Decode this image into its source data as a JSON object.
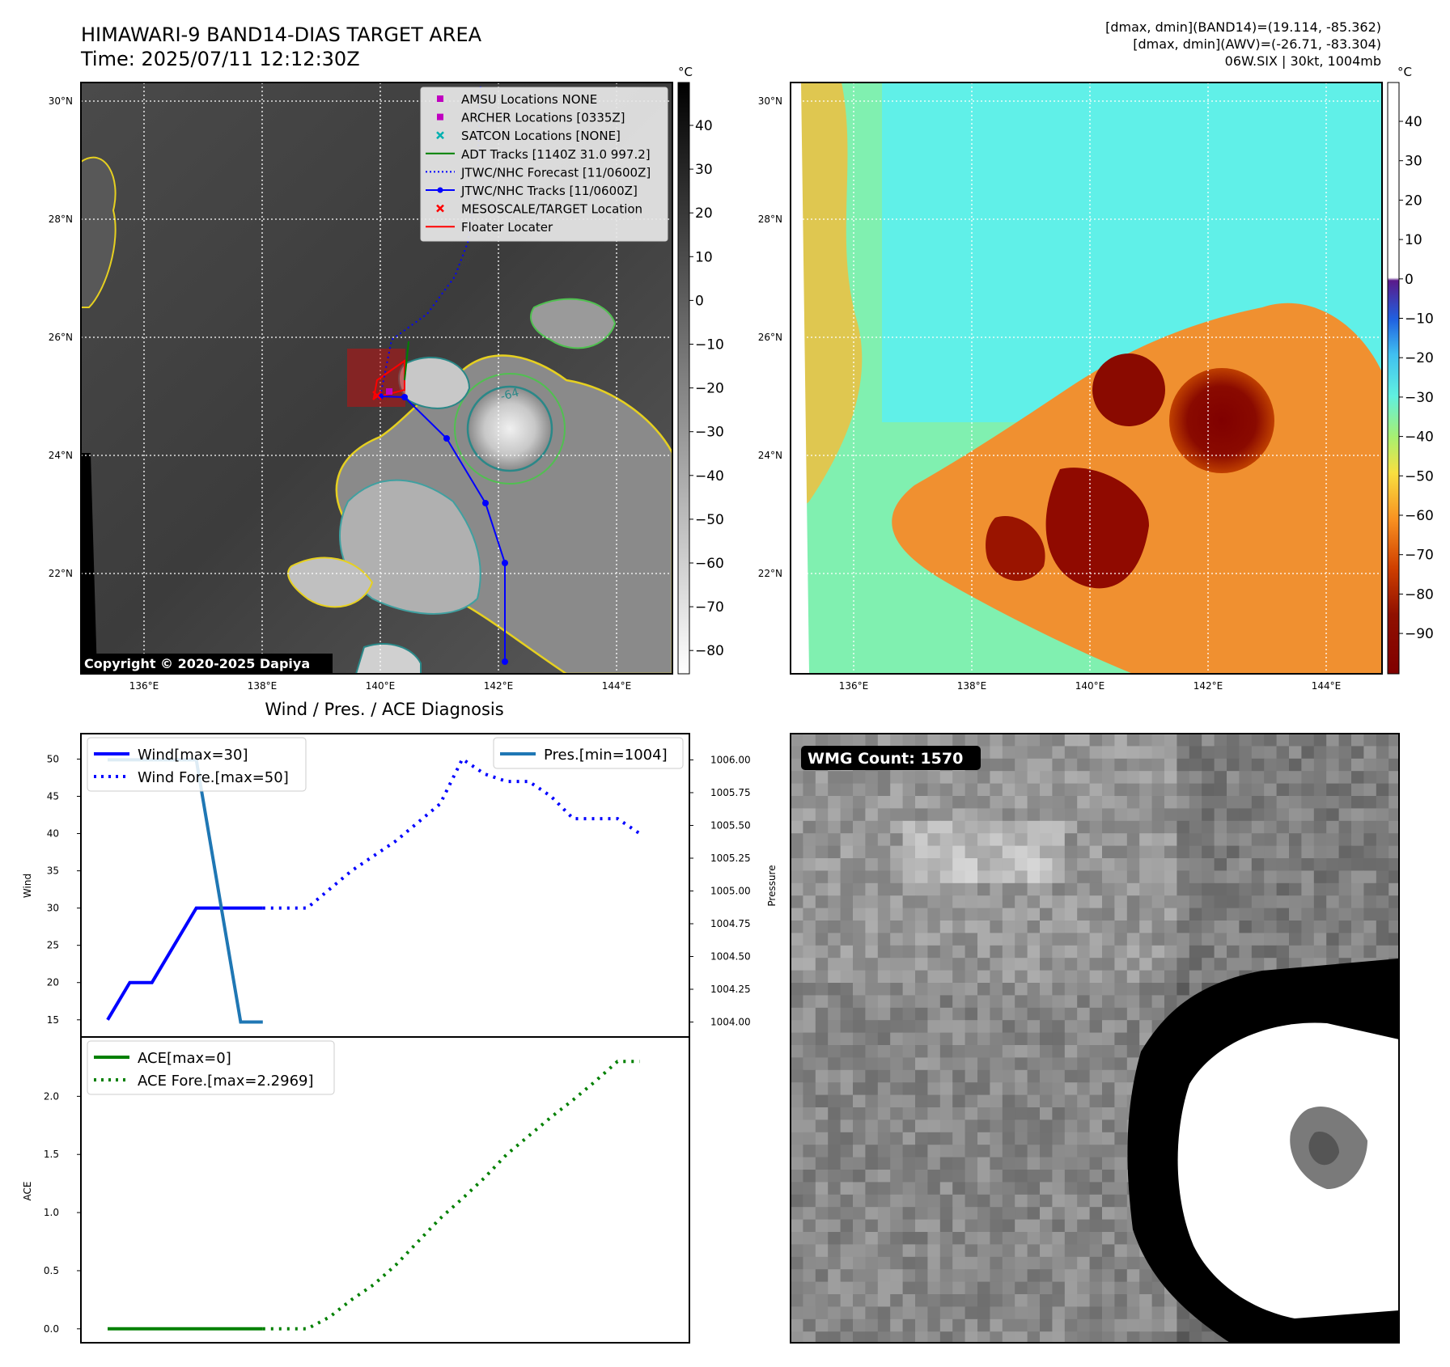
{
  "header": {
    "title_line1": "HIMAWARI-9 BAND14-DIAS TARGET AREA",
    "title_line2": "Time: 2025/07/11 12:12:30Z",
    "info_line1": "[dmax, dmin](BAND14)=(19.114, -85.362)",
    "info_line2": "[dmax, dmin](AWV)=(-26.71, -83.304)",
    "info_line3": "06W.SIX | 30kt, 1004mb"
  },
  "map_axes": {
    "lat_ticks": [
      "30°N",
      "28°N",
      "26°N",
      "24°N",
      "22°N"
    ],
    "lon_ticks": [
      "136°E",
      "138°E",
      "140°E",
      "142°E",
      "144°E"
    ]
  },
  "map1": {
    "copyright": "Copyright © 2020-2025 Dapiya",
    "colorbar_unit": "°C",
    "colorbar_ticks": [
      "40",
      "30",
      "20",
      "10",
      "0",
      "−10",
      "−20",
      "−30",
      "−40",
      "−50",
      "−60",
      "−70",
      "−80"
    ],
    "contour_label": "-64",
    "legend": [
      {
        "label": "AMSU Locations NONE",
        "color": "#c000c0",
        "marker": "square"
      },
      {
        "label": "ARCHER Locations [0335Z]",
        "color": "#c000c0",
        "marker": "square"
      },
      {
        "label": "SATCON Locations [NONE]",
        "color": "#00b0b0",
        "marker": "x"
      },
      {
        "label": "ADT Tracks [1140Z 31.0 997.2]",
        "color": "#008000",
        "marker": "line"
      },
      {
        "label": "JTWC/NHC Forecast [11/0600Z]",
        "color": "#0000ff",
        "marker": "dotted"
      },
      {
        "label": "JTWC/NHC Tracks [11/0600Z]",
        "color": "#0000ff",
        "marker": "line-dot"
      },
      {
        "label": "MESOSCALE/TARGET Location",
        "color": "#ff0000",
        "marker": "x"
      },
      {
        "label": "Floater Locater",
        "color": "#ff0000",
        "marker": "line"
      }
    ]
  },
  "map2": {
    "colorbar_unit": "°C",
    "colorbar_ticks": [
      "40",
      "30",
      "20",
      "10",
      "0",
      "−10",
      "−20",
      "−30",
      "−40",
      "−50",
      "−60",
      "−70",
      "−80",
      "−90"
    ]
  },
  "panel3": {
    "title": "Wind / Pres. / ACE Diagnosis",
    "badge": "WMG Count: 1570"
  },
  "chart_data": [
    {
      "type": "line",
      "title": "Wind / Pres. / ACE Diagnosis",
      "ylabel": "Wind",
      "y2label": "Pressure",
      "ylim": [
        14,
        52
      ],
      "y2lim": [
        1003.96,
        1006.12
      ],
      "yticks": [
        "15",
        "20",
        "25",
        "30",
        "35",
        "40",
        "45",
        "50"
      ],
      "y2ticks": [
        "1004.00",
        "1004.25",
        "1004.50",
        "1004.75",
        "1005.00",
        "1005.25",
        "1005.50",
        "1005.75",
        "1006.00"
      ],
      "xlim": [
        0,
        25
      ],
      "series": [
        {
          "name": "Wind[max=30]",
          "color": "#0000ff",
          "style": "solid",
          "x": [
            0,
            1,
            2,
            4,
            5,
            6,
            7
          ],
          "y": [
            15,
            20,
            20,
            30,
            30,
            30,
            30
          ]
        },
        {
          "name": "Wind Fore.[max=50]",
          "color": "#0000ff",
          "style": "dotted",
          "x": [
            7,
            9,
            11,
            13,
            15,
            16,
            17,
            18,
            19,
            20,
            21,
            22,
            23,
            24
          ],
          "y": [
            30,
            30,
            35,
            39,
            44,
            50,
            48,
            47,
            47,
            45,
            42,
            42,
            42,
            40
          ]
        },
        {
          "name": "Pres.[min=1004]",
          "color": "#1f77b4",
          "style": "solid",
          "axis": "y2",
          "x": [
            0,
            4,
            6,
            7
          ],
          "y": [
            1006,
            1006,
            1004,
            1004
          ]
        }
      ],
      "legend": [
        "upper left",
        "upper right"
      ]
    },
    {
      "type": "line",
      "ylabel": "ACE",
      "ylim": [
        -0.05,
        2.42
      ],
      "yticks": [
        "0.0",
        "0.5",
        "1.0",
        "1.5",
        "2.0"
      ],
      "xlim": [
        0,
        25
      ],
      "series": [
        {
          "name": "ACE[max=0]",
          "color": "#008000",
          "style": "solid",
          "x": [
            0,
            7
          ],
          "y": [
            0,
            0
          ]
        },
        {
          "name": "ACE Fore.[max=2.2969]",
          "color": "#008000",
          "style": "dotted",
          "x": [
            7,
            9,
            10,
            11,
            12,
            13,
            14,
            15,
            16,
            17,
            18,
            19,
            20,
            21,
            22,
            23,
            24
          ],
          "y": [
            0,
            0,
            0.1,
            0.25,
            0.38,
            0.55,
            0.75,
            0.95,
            1.12,
            1.3,
            1.5,
            1.66,
            1.82,
            1.97,
            2.13,
            2.3,
            2.3
          ]
        }
      ],
      "legend": [
        "upper left"
      ]
    }
  ]
}
